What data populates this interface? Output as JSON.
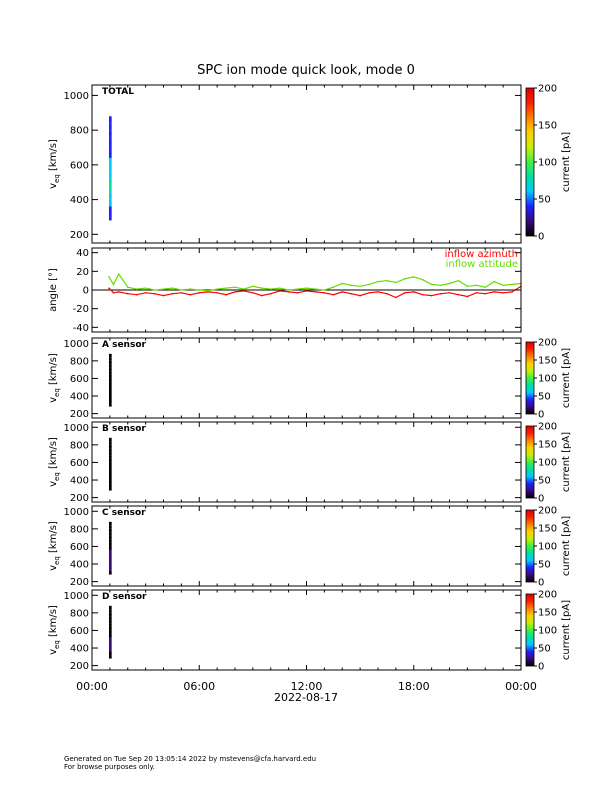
{
  "title": "SPC ion mode quick look, mode 0",
  "footer": {
    "line1": "Generated on Tue Sep 20 13:05:14 2022 by mstevens@cfa.harvard.edu",
    "line2": "For browse purposes only."
  },
  "x_axis": {
    "ticks": [
      {
        "hour": 0,
        "label": "00:00"
      },
      {
        "hour": 6,
        "label": "06:00"
      },
      {
        "hour": 12,
        "label": "12:00"
      },
      {
        "hour": 18,
        "label": "18:00"
      },
      {
        "hour": 24,
        "label": "00:00"
      }
    ],
    "date_label": "2022-08-17",
    "range_hours": [
      0,
      24
    ]
  },
  "colorbar": {
    "label": "current [pA]",
    "range": [
      0,
      200
    ],
    "colors": [
      "#000000",
      "#3a0a7a",
      "#2020ff",
      "#00c8ff",
      "#00e0a0",
      "#40f040",
      "#c8f000",
      "#ffd000",
      "#ff8000",
      "#ff2000",
      "#e00000"
    ]
  },
  "chart_data": [
    {
      "type": "heatmap",
      "panel": "total",
      "label": "TOTAL",
      "ylabel": "v_eq [km/s]",
      "ylabel_main": "v",
      "ylabel_sub": "eq",
      "ylabel_rest": " [km/s]",
      "ylim": [
        150,
        1060
      ],
      "yticks": [
        200,
        400,
        600,
        800,
        1000
      ],
      "colorbar_ticks": [
        0,
        50,
        100,
        150,
        200
      ],
      "column": {
        "start_hour": 0.95,
        "end_hour": 1.1
      },
      "cells": [
        {
          "v": 300,
          "current": 40
        },
        {
          "v": 340,
          "current": 45
        },
        {
          "v": 380,
          "current": 50
        },
        {
          "v": 420,
          "current": 55
        },
        {
          "v": 460,
          "current": 80
        },
        {
          "v": 500,
          "current": 70
        },
        {
          "v": 540,
          "current": 60
        },
        {
          "v": 580,
          "current": 55
        },
        {
          "v": 620,
          "current": 50
        },
        {
          "v": 660,
          "current": 45
        },
        {
          "v": 700,
          "current": 40
        },
        {
          "v": 740,
          "current": 38
        },
        {
          "v": 780,
          "current": 36
        },
        {
          "v": 820,
          "current": 34
        },
        {
          "v": 860,
          "current": 32
        }
      ]
    },
    {
      "type": "line",
      "panel": "angle",
      "ylabel": "angle [°]",
      "ylim": [
        -45,
        45
      ],
      "yticks": [
        -40,
        -20,
        0,
        20,
        40
      ],
      "x_unit": "hour",
      "series": [
        {
          "name": "inflow azimuth",
          "color": "#ff0000",
          "x": [
            0.95,
            1.2,
            1.5,
            2,
            2.5,
            3,
            3.5,
            4,
            4.5,
            5,
            5.5,
            6,
            6.5,
            7,
            7.5,
            8,
            8.5,
            9,
            9.5,
            10,
            10.5,
            11,
            11.5,
            12,
            12.5,
            13,
            13.5,
            14,
            14.5,
            15,
            15.5,
            16,
            16.5,
            17,
            17.5,
            18,
            18.5,
            19,
            19.5,
            20,
            20.5,
            21,
            21.5,
            22,
            22.5,
            23,
            23.5,
            24
          ],
          "y": [
            2,
            -3,
            -2,
            -4,
            -5,
            -3,
            -4,
            -6,
            -4,
            -3,
            -5,
            -3,
            -2,
            -3,
            -5,
            -2,
            -1,
            -3,
            -6,
            -4,
            -1,
            -2,
            -3,
            -1,
            -2,
            -3,
            -5,
            -2,
            -4,
            -6,
            -3,
            -2,
            -4,
            -8,
            -3,
            -2,
            -5,
            -6,
            -4,
            -3,
            -5,
            -7,
            -3,
            -4,
            -2,
            -3,
            -2,
            4
          ]
        },
        {
          "name": "inflow attitude",
          "color": "#66dd00",
          "x": [
            0.95,
            1.2,
            1.5,
            2,
            2.5,
            3,
            3.5,
            4,
            4.5,
            5,
            5.5,
            6,
            6.5,
            7,
            7.5,
            8,
            8.5,
            9,
            9.5,
            10,
            10.5,
            11,
            11.5,
            12,
            12.5,
            13,
            13.5,
            14,
            14.5,
            15,
            15.5,
            16,
            16.5,
            17,
            17.5,
            18,
            18.5,
            19,
            19.5,
            20,
            20.5,
            21,
            21.5,
            22,
            22.5,
            23,
            23.5,
            24
          ],
          "y": [
            14,
            6,
            17,
            3,
            1,
            2,
            0,
            1,
            2,
            0,
            1,
            0,
            -1,
            1,
            2,
            3,
            1,
            4,
            2,
            1,
            2,
            0,
            1,
            2,
            1,
            0,
            3,
            7,
            5,
            4,
            6,
            9,
            10,
            8,
            12,
            14,
            11,
            6,
            5,
            7,
            10,
            4,
            5,
            3,
            9,
            5,
            6,
            7
          ]
        }
      ]
    },
    {
      "type": "heatmap",
      "panel": "A",
      "label": "A sensor",
      "ylabel": "v_eq [km/s]",
      "ylabel_main": "v",
      "ylabel_sub": "eq",
      "ylabel_rest": " [km/s]",
      "ylim": [
        150,
        1060
      ],
      "yticks": [
        200,
        400,
        600,
        800,
        1000
      ],
      "colorbar_ticks": [
        0,
        50,
        100,
        150,
        200
      ],
      "column": {
        "start_hour": 0.95,
        "end_hour": 1.1
      },
      "cells": [
        {
          "v": 300,
          "current": 0
        },
        {
          "v": 340,
          "current": 0
        },
        {
          "v": 380,
          "current": 0
        },
        {
          "v": 420,
          "current": 0
        },
        {
          "v": 460,
          "current": 0
        },
        {
          "v": 500,
          "current": 0
        },
        {
          "v": 540,
          "current": 0
        },
        {
          "v": 580,
          "current": 0
        },
        {
          "v": 620,
          "current": 0
        },
        {
          "v": 660,
          "current": 0
        },
        {
          "v": 700,
          "current": 0
        },
        {
          "v": 740,
          "current": 0
        },
        {
          "v": 780,
          "current": 0
        },
        {
          "v": 820,
          "current": 0
        },
        {
          "v": 860,
          "current": 0
        }
      ]
    },
    {
      "type": "heatmap",
      "panel": "B",
      "label": "B sensor",
      "ylabel": "v_eq [km/s]",
      "ylabel_main": "v",
      "ylabel_sub": "eq",
      "ylabel_rest": " [km/s]",
      "ylim": [
        150,
        1060
      ],
      "yticks": [
        200,
        400,
        600,
        800,
        1000
      ],
      "colorbar_ticks": [
        0,
        50,
        100,
        150,
        200
      ],
      "column": {
        "start_hour": 0.95,
        "end_hour": 1.1
      },
      "cells": [
        {
          "v": 300,
          "current": 0
        },
        {
          "v": 340,
          "current": 0
        },
        {
          "v": 380,
          "current": 0
        },
        {
          "v": 420,
          "current": 0
        },
        {
          "v": 460,
          "current": 0
        },
        {
          "v": 500,
          "current": 0
        },
        {
          "v": 540,
          "current": 0
        },
        {
          "v": 580,
          "current": 0
        },
        {
          "v": 620,
          "current": 0
        },
        {
          "v": 660,
          "current": 0
        },
        {
          "v": 700,
          "current": 0
        },
        {
          "v": 740,
          "current": 0
        },
        {
          "v": 780,
          "current": 0
        },
        {
          "v": 820,
          "current": 0
        },
        {
          "v": 860,
          "current": 0
        }
      ]
    },
    {
      "type": "heatmap",
      "panel": "C",
      "label": "C sensor",
      "ylabel": "v_eq [km/s]",
      "ylabel_main": "v",
      "ylabel_sub": "eq",
      "ylabel_rest": " [km/s]",
      "ylim": [
        150,
        1060
      ],
      "yticks": [
        200,
        400,
        600,
        800,
        1000
      ],
      "colorbar_ticks": [
        0,
        50,
        100,
        150,
        200
      ],
      "column": {
        "start_hour": 0.95,
        "end_hour": 1.1
      },
      "cells": [
        {
          "v": 300,
          "current": 8
        },
        {
          "v": 340,
          "current": 10
        },
        {
          "v": 380,
          "current": 12
        },
        {
          "v": 420,
          "current": 18
        },
        {
          "v": 460,
          "current": 22
        },
        {
          "v": 500,
          "current": 15
        },
        {
          "v": 540,
          "current": 10
        },
        {
          "v": 580,
          "current": 8
        },
        {
          "v": 620,
          "current": 7
        },
        {
          "v": 660,
          "current": 6
        },
        {
          "v": 700,
          "current": 6
        },
        {
          "v": 740,
          "current": 5
        },
        {
          "v": 780,
          "current": 5
        },
        {
          "v": 820,
          "current": 5
        },
        {
          "v": 860,
          "current": 4
        }
      ]
    },
    {
      "type": "heatmap",
      "panel": "D",
      "label": "D sensor",
      "ylabel": "v_eq [km/s]",
      "ylabel_main": "v",
      "ylabel_sub": "eq",
      "ylabel_rest": " [km/s]",
      "ylim": [
        150,
        1060
      ],
      "yticks": [
        200,
        400,
        600,
        800,
        1000
      ],
      "colorbar_ticks": [
        0,
        50,
        100,
        150,
        200
      ],
      "column": {
        "start_hour": 0.95,
        "end_hour": 1.1
      },
      "cells": [
        {
          "v": 300,
          "current": 6
        },
        {
          "v": 340,
          "current": 8
        },
        {
          "v": 380,
          "current": 10
        },
        {
          "v": 420,
          "current": 14
        },
        {
          "v": 460,
          "current": 24
        },
        {
          "v": 500,
          "current": 16
        },
        {
          "v": 540,
          "current": 9
        },
        {
          "v": 580,
          "current": 7
        },
        {
          "v": 620,
          "current": 6
        },
        {
          "v": 660,
          "current": 6
        },
        {
          "v": 700,
          "current": 5
        },
        {
          "v": 740,
          "current": 5
        },
        {
          "v": 780,
          "current": 5
        },
        {
          "v": 820,
          "current": 4
        },
        {
          "v": 860,
          "current": 4
        }
      ]
    }
  ]
}
